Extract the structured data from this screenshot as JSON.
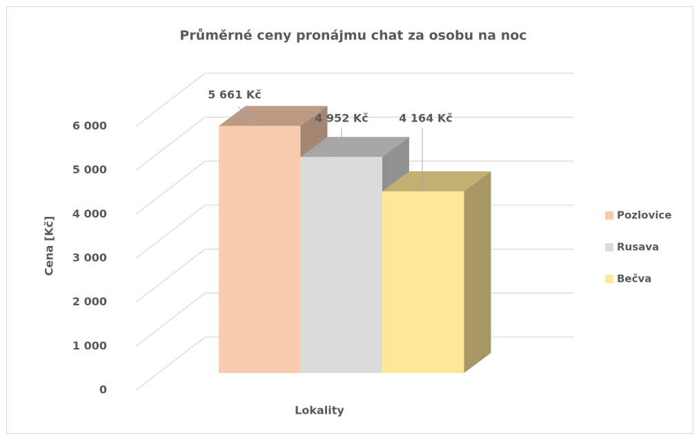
{
  "chart_data": {
    "type": "bar3d",
    "title": "Průměrné ceny pronájmu chat za osobu na noc",
    "y_label": "Cena [Kč]",
    "x_label": "Lokality",
    "categories": [
      null
    ],
    "series": [
      {
        "name": "Pozlovice",
        "color": "#f8cbad",
        "values": [
          5661
        ],
        "value_labels": [
          "5 661 Kč"
        ]
      },
      {
        "name": "Rusava",
        "color": "#dbdbdb",
        "values": [
          4952
        ],
        "value_labels": [
          "4 952 Kč"
        ]
      },
      {
        "name": "Bečva",
        "color": "#ffe699",
        "values": [
          4164
        ],
        "value_labels": [
          "4 164 Kč"
        ]
      }
    ],
    "ylim": [
      0,
      6000
    ],
    "yticks": [
      0,
      {
        "value": 1000,
        "label": "1 000"
      },
      {
        "value": 2000,
        "label": "2 000"
      },
      {
        "value": 3000,
        "label": "3 000"
      },
      {
        "value": 4000,
        "label": "4 000"
      },
      {
        "value": 5000,
        "label": "5 000"
      },
      {
        "value": 6000,
        "label": "6 000"
      }
    ],
    "grid": true,
    "legend": "right"
  }
}
